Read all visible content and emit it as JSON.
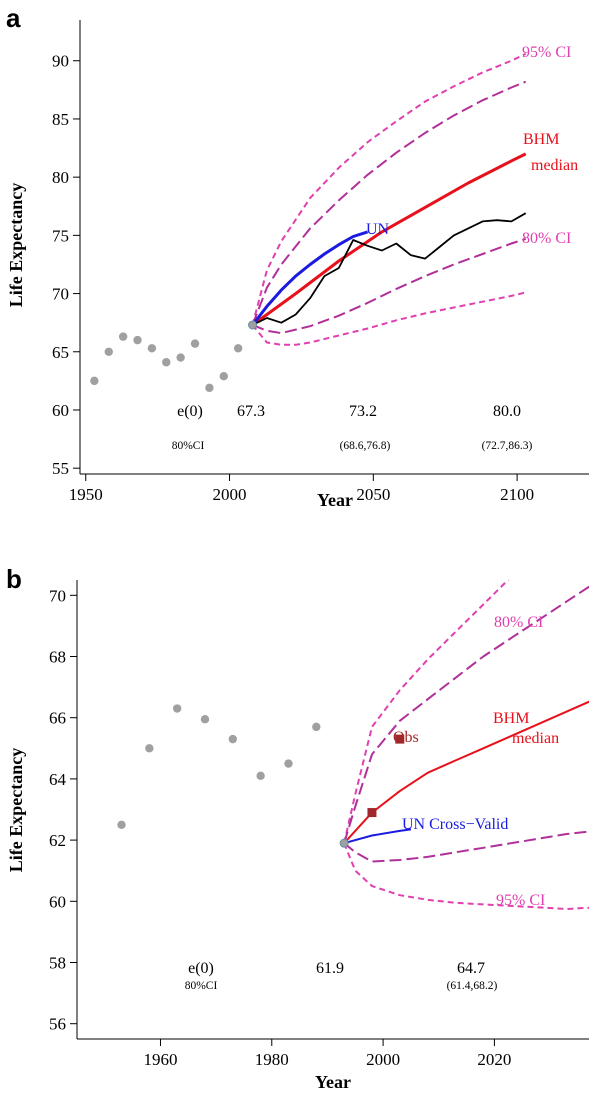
{
  "colors": {
    "ci95": "#e040b0",
    "ci80": "#b0309a",
    "bhm": "#e8101a",
    "un": "#1a1ae0",
    "observed": "#000000",
    "points": "#a0a0a0",
    "obs_marker": "#a0282a",
    "axis": "#000000"
  },
  "chart_data": [
    {
      "panel": "a",
      "type": "line",
      "xlabel": "Year",
      "ylabel": "Life Expectancy",
      "xlim": [
        1948,
        2125
      ],
      "ylim": [
        54.5,
        93.5
      ],
      "xticks": [
        1950,
        2000,
        2050,
        2100
      ],
      "yticks": [
        55,
        60,
        65,
        70,
        75,
        80,
        85,
        90
      ],
      "past_points": {
        "x": [
          1953,
          1958,
          1963,
          1968,
          1973,
          1978,
          1983,
          1988,
          1993,
          1998,
          2003
        ],
        "y": [
          62.5,
          65.0,
          66.3,
          66.0,
          65.3,
          64.1,
          64.5,
          65.7,
          61.9,
          62.9,
          65.3
        ]
      },
      "start_point": {
        "x": 2008,
        "y": 67.3
      },
      "series": [
        {
          "key": "ci95_upper",
          "color_key": "ci95",
          "dash": "6,4",
          "width": 2,
          "x": [
            2008,
            2013,
            2018,
            2028,
            2038,
            2048,
            2058,
            2068,
            2078,
            2088,
            2098,
            2103
          ],
          "y": [
            67.3,
            72.0,
            74.5,
            78.2,
            80.8,
            83.0,
            84.8,
            86.5,
            87.8,
            89.0,
            90.0,
            90.6
          ]
        },
        {
          "key": "ci80_upper",
          "color_key": "ci80",
          "dash": "12,5",
          "width": 2,
          "x": [
            2008,
            2013,
            2018,
            2028,
            2038,
            2048,
            2058,
            2068,
            2078,
            2088,
            2098,
            2103
          ],
          "y": [
            67.3,
            70.5,
            72.5,
            75.6,
            78.0,
            80.2,
            82.1,
            83.8,
            85.3,
            86.6,
            87.7,
            88.2
          ]
        },
        {
          "key": "bhm_median",
          "color_key": "bhm",
          "dash": "",
          "width": 3,
          "x": [
            2008,
            2023,
            2038,
            2053,
            2068,
            2083,
            2098,
            2103
          ],
          "y": [
            67.3,
            70.0,
            72.8,
            75.3,
            77.4,
            79.5,
            81.4,
            82.0
          ]
        },
        {
          "key": "ci80_lower",
          "color_key": "ci80",
          "dash": "12,5",
          "width": 2,
          "x": [
            2008,
            2013,
            2018,
            2028,
            2038,
            2048,
            2058,
            2068,
            2078,
            2088,
            2098,
            2103
          ],
          "y": [
            67.3,
            66.8,
            66.6,
            67.2,
            68.1,
            69.2,
            70.4,
            71.5,
            72.5,
            73.4,
            74.3,
            74.7
          ]
        },
        {
          "key": "ci95_lower",
          "color_key": "ci95",
          "dash": "6,4",
          "width": 2,
          "x": [
            2008,
            2013,
            2018,
            2023,
            2028,
            2038,
            2048,
            2058,
            2068,
            2078,
            2088,
            2098,
            2103
          ],
          "y": [
            67.3,
            65.8,
            65.6,
            65.6,
            65.8,
            66.4,
            67.0,
            67.7,
            68.3,
            68.8,
            69.3,
            69.8,
            70.1
          ]
        },
        {
          "key": "un",
          "color_key": "un",
          "dash": "",
          "width": 3,
          "x": [
            2008,
            2013,
            2018,
            2023,
            2028,
            2033,
            2038,
            2043,
            2048
          ],
          "y": [
            67.3,
            68.9,
            70.3,
            71.5,
            72.5,
            73.4,
            74.2,
            74.9,
            75.3
          ]
        },
        {
          "key": "observed_path",
          "color_key": "observed",
          "dash": "",
          "width": 1.8,
          "x": [
            2008,
            2013,
            2018,
            2023,
            2028,
            2033,
            2038,
            2043,
            2048,
            2053,
            2058,
            2063,
            2068,
            2073,
            2078,
            2083,
            2088,
            2093,
            2098,
            2103
          ],
          "y": [
            67.3,
            67.9,
            67.5,
            68.2,
            69.6,
            71.5,
            72.2,
            74.6,
            74.1,
            73.7,
            74.3,
            73.3,
            73.0,
            74.0,
            75.0,
            75.6,
            76.2,
            76.3,
            76.2,
            76.9
          ]
        }
      ],
      "labels": {
        "ci95": "95% CI",
        "ci80": "80% CI",
        "bhm": "BHM",
        "median": "median",
        "un": "UN"
      },
      "annotations": {
        "e0": "e(0)",
        "ci_label": "80%CI",
        "values": [
          "67.3",
          "73.2",
          "80.0"
        ],
        "intervals": [
          "(68.6,76.8)",
          "(72.7,86.3)"
        ]
      }
    },
    {
      "panel": "b",
      "type": "line",
      "xlabel": "Year",
      "ylabel": "Life Expectancy",
      "xlim": [
        1945,
        2037
      ],
      "ylim": [
        55.5,
        70.5
      ],
      "xticks": [
        1960,
        1980,
        2000,
        2020
      ],
      "yticks": [
        56,
        58,
        60,
        62,
        64,
        66,
        68,
        70
      ],
      "past_points": {
        "x": [
          1953,
          1958,
          1963,
          1968,
          1973,
          1978,
          1983,
          1988
        ],
        "y": [
          62.5,
          65.0,
          66.3,
          65.95,
          65.3,
          64.1,
          64.5,
          65.7
        ]
      },
      "start_point": {
        "x": 1993,
        "y": 61.9
      },
      "obs_points": {
        "x": [
          1998,
          2003
        ],
        "y": [
          62.9,
          65.3
        ]
      },
      "series": [
        {
          "key": "ci95_upper",
          "color_key": "ci95",
          "dash": "6,4",
          "width": 2,
          "x": [
            1993,
            1995,
            1998,
            2003,
            2008,
            2013,
            2018,
            2023
          ],
          "y": [
            61.9,
            63.5,
            65.7,
            66.9,
            67.9,
            68.8,
            69.7,
            70.6
          ]
        },
        {
          "key": "ci80_upper",
          "color_key": "ci80",
          "dash": "12,5",
          "width": 2,
          "x": [
            1993,
            1995,
            1998,
            2003,
            2008,
            2013,
            2018,
            2023,
            2028,
            2033,
            2038
          ],
          "y": [
            61.9,
            63.1,
            64.8,
            65.9,
            66.6,
            67.3,
            68.0,
            68.6,
            69.2,
            69.8,
            70.4
          ]
        },
        {
          "key": "bhm_median",
          "color_key": "bhm",
          "dash": "",
          "width": 2,
          "x": [
            1993,
            1998,
            2003,
            2008,
            2013,
            2018,
            2023,
            2028,
            2033,
            2038
          ],
          "y": [
            61.9,
            62.9,
            63.6,
            64.2,
            64.6,
            65.0,
            65.4,
            65.8,
            66.2,
            66.6
          ]
        },
        {
          "key": "un_cross_valid",
          "color_key": "un",
          "dash": "",
          "width": 2,
          "x": [
            1993,
            1998,
            2003,
            2005
          ],
          "y": [
            61.9,
            62.15,
            62.3,
            62.35
          ]
        },
        {
          "key": "ci80_lower",
          "color_key": "ci80",
          "dash": "12,5",
          "width": 2,
          "x": [
            1993,
            1995,
            1998,
            2003,
            2008,
            2013,
            2018,
            2023,
            2028,
            2033,
            2038
          ],
          "y": [
            61.9,
            61.6,
            61.3,
            61.35,
            61.45,
            61.6,
            61.75,
            61.9,
            62.05,
            62.2,
            62.3
          ]
        },
        {
          "key": "ci95_lower",
          "color_key": "ci95",
          "dash": "6,4",
          "width": 2,
          "x": [
            1993,
            1995,
            1998,
            2003,
            2008,
            2013,
            2018,
            2023,
            2028,
            2033,
            2038
          ],
          "y": [
            61.9,
            61.0,
            60.5,
            60.2,
            60.05,
            59.95,
            59.9,
            59.85,
            59.8,
            59.75,
            59.8
          ]
        }
      ],
      "labels": {
        "ci80": "80% CI",
        "ci95": "95% CI",
        "bhm": "BHM",
        "median": "median",
        "obs": "Obs",
        "un": "UN Cross−Valid"
      },
      "annotations": {
        "e0": "e(0)",
        "ci_label": "80%CI",
        "values": [
          "61.9",
          "64.7"
        ],
        "intervals": [
          "(61.4,68.2)"
        ]
      }
    }
  ]
}
